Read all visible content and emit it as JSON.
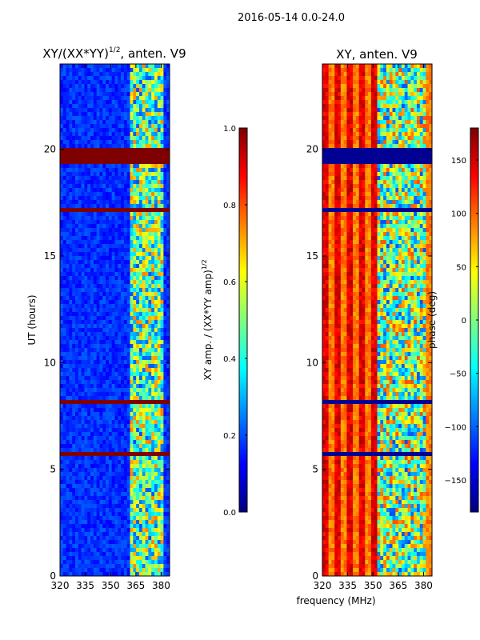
{
  "figure": {
    "suptitle": "2016-05-14 0.0-24.0",
    "shared_xlabel": "frequency (MHz)"
  },
  "colors": {
    "jet": [
      "#00007f",
      "#0000ff",
      "#007fff",
      "#00ffff",
      "#7fff7f",
      "#ffff00",
      "#ff7f00",
      "#ff0000",
      "#7f0000"
    ],
    "line_color": "#000000"
  },
  "chart_data": [
    {
      "type": "heatmap",
      "name": "amplitude",
      "title": "XY/(XX*YY)",
      "title_exp": "1/2",
      "title_suffix": ", anten. V9",
      "xlabel": "",
      "ylabel": "UT (hours)",
      "xlim": [
        320,
        385
      ],
      "ylim": [
        0,
        24
      ],
      "xticks": [
        320,
        335,
        350,
        365,
        380
      ],
      "yticks": [
        0,
        5,
        10,
        15,
        20
      ],
      "xtick_labels": [
        "320",
        "335",
        "350",
        "365",
        "380"
      ],
      "ytick_labels": [
        "0",
        "5",
        "10",
        "15",
        "20"
      ],
      "colorbar": {
        "label": "XY amp. / (XX*YY amp)",
        "label_exp": "1/2",
        "range": [
          0.0,
          1.0
        ],
        "ticks": [
          0.0,
          0.2,
          0.4,
          0.6,
          0.8,
          1.0
        ],
        "tick_labels": [
          "0.0",
          "0.2",
          "0.4",
          "0.6",
          "0.8",
          "1.0"
        ]
      },
      "flagged_hours": [
        [
          19.4,
          20.1
        ],
        [
          17.1,
          17.3
        ],
        [
          8.0,
          8.3
        ],
        [
          5.6,
          5.8
        ]
      ],
      "rfi_band_mhz": [
        361,
        382
      ]
    },
    {
      "type": "heatmap",
      "name": "phase",
      "title": "XY, anten. V9",
      "xlabel": "",
      "ylabel": "",
      "xlim": [
        320,
        385
      ],
      "ylim": [
        0,
        24
      ],
      "xticks": [
        320,
        335,
        350,
        365,
        380
      ],
      "yticks": [
        0,
        5,
        10,
        15,
        20
      ],
      "xtick_labels": [
        "320",
        "335",
        "350",
        "365",
        "380"
      ],
      "ytick_labels": [
        "0",
        "5",
        "10",
        "15",
        "20"
      ],
      "colorbar": {
        "label": "phase (deg)",
        "range": [
          -180,
          180
        ],
        "ticks": [
          -150,
          -100,
          -50,
          0,
          50,
          100,
          150
        ],
        "tick_labels": [
          "−150",
          "−100",
          "−50",
          "0",
          "50",
          "100",
          "150"
        ]
      },
      "flagged_hours": [
        [
          19.4,
          20.1
        ],
        [
          17.1,
          17.3
        ],
        [
          8.0,
          8.3
        ],
        [
          5.6,
          5.8
        ]
      ],
      "rfi_band_mhz": [
        353,
        382
      ]
    }
  ]
}
